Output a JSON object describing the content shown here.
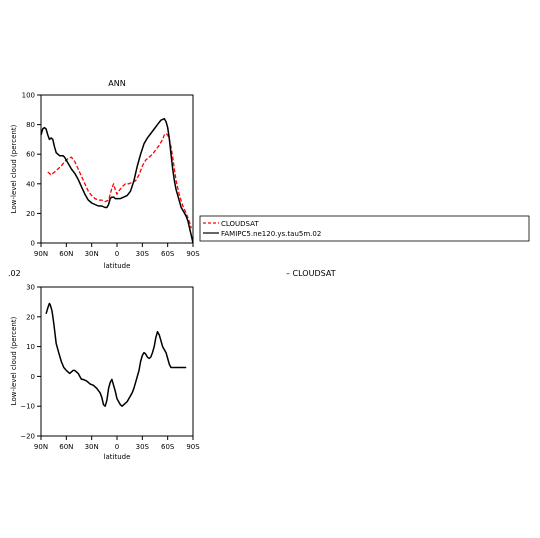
{
  "figure": {
    "left_fragment": ".02",
    "right_fragment": "–  CLOUDSAT"
  },
  "chart_data": [
    {
      "type": "line",
      "title": "ANN",
      "xlabel": "latitude",
      "ylabel": "Low-level cloud (percent)",
      "xlim": [
        -90,
        90
      ],
      "ylim": [
        0,
        100
      ],
      "xticks": [
        -90,
        -60,
        -30,
        0,
        30,
        60,
        90
      ],
      "xtick_labels": [
        "90N",
        "60N",
        "30N",
        "0",
        "30S",
        "60S",
        "90S"
      ],
      "yticks": [
        0,
        20,
        40,
        60,
        80,
        100
      ],
      "ytick_labels": [
        "0",
        "20",
        "40",
        "60",
        "80",
        "100"
      ],
      "grid": false,
      "legend": "right, outside plot",
      "series": [
        {
          "name": "CLOUDSAT",
          "color": "#ff0000",
          "style": "dashed",
          "x": [
            -82,
            -78,
            -74,
            -70,
            -66,
            -62,
            -58,
            -54,
            -50,
            -46,
            -42,
            -38,
            -34,
            -30,
            -26,
            -22,
            -18,
            -14,
            -10,
            -8,
            -6,
            -4,
            -2,
            0,
            2,
            6,
            10,
            14,
            18,
            22,
            26,
            30,
            34,
            38,
            42,
            46,
            50,
            54,
            56,
            58,
            60,
            62,
            64,
            66,
            68,
            70,
            74,
            78,
            82,
            84,
            86,
            88
          ],
          "y": [
            48,
            46,
            48,
            50,
            52,
            55,
            57,
            58,
            55,
            50,
            45,
            40,
            35,
            32,
            30,
            29,
            29,
            28,
            29,
            33,
            37,
            40,
            36,
            33,
            35,
            38,
            40,
            40,
            41,
            42,
            46,
            52,
            56,
            58,
            60,
            63,
            66,
            70,
            73,
            74,
            73,
            70,
            65,
            58,
            50,
            42,
            32,
            25,
            20,
            17,
            14,
            10
          ]
        },
        {
          "name": "FAMIPC5.ne120.ys.tau5m.02",
          "color": "#000000",
          "style": "solid",
          "x": [
            -90,
            -88,
            -86,
            -84,
            -82,
            -80,
            -78,
            -76,
            -74,
            -72,
            -70,
            -68,
            -66,
            -64,
            -62,
            -60,
            -58,
            -56,
            -54,
            -50,
            -46,
            -42,
            -38,
            -34,
            -30,
            -26,
            -22,
            -18,
            -14,
            -12,
            -10,
            -8,
            -6,
            -4,
            -2,
            0,
            2,
            4,
            8,
            12,
            16,
            20,
            24,
            28,
            32,
            36,
            40,
            44,
            48,
            52,
            56,
            58,
            60,
            62,
            64,
            66,
            68,
            70,
            72,
            74,
            76,
            78,
            80,
            82,
            84,
            86,
            88,
            90
          ],
          "y": [
            73,
            77,
            78,
            77,
            73,
            70,
            71,
            70,
            65,
            61,
            60,
            59,
            59,
            59,
            58,
            56,
            54,
            52,
            50,
            47,
            43,
            38,
            33,
            29,
            27,
            26,
            25,
            25,
            24,
            24,
            26,
            30,
            31,
            31,
            30,
            30,
            30,
            30,
            31,
            32,
            35,
            42,
            52,
            60,
            67,
            71,
            74,
            77,
            80,
            83,
            84,
            82,
            78,
            70,
            60,
            50,
            42,
            36,
            32,
            28,
            24,
            22,
            20,
            18,
            15,
            10,
            5,
            0
          ]
        }
      ]
    },
    {
      "type": "line",
      "title": "",
      "xlabel": "latitude",
      "ylabel": "Low-level cloud (percent)",
      "xlim": [
        -90,
        90
      ],
      "ylim": [
        -20,
        30
      ],
      "xticks": [
        -90,
        -60,
        -30,
        0,
        30,
        60,
        90
      ],
      "xtick_labels": [
        "90N",
        "60N",
        "30N",
        "0",
        "30S",
        "60S",
        "90S"
      ],
      "yticks": [
        -20,
        -10,
        0,
        10,
        20,
        30
      ],
      "ytick_labels": [
        "−20",
        "−10",
        "0",
        "10",
        "20",
        "30"
      ],
      "grid": false,
      "series": [
        {
          "color": "#000000",
          "style": "solid",
          "x": [
            -84,
            -82,
            -80,
            -79,
            -77,
            -75,
            -72,
            -69,
            -66,
            -63,
            -60,
            -58,
            -56,
            -54,
            -52,
            -50,
            -48,
            -46,
            -44,
            -42,
            -40,
            -36,
            -32,
            -28,
            -24,
            -20,
            -18,
            -16,
            -14,
            -12,
            -10,
            -8,
            -6,
            -4,
            -2,
            0,
            2,
            4,
            6,
            8,
            10,
            12,
            14,
            16,
            18,
            20,
            22,
            24,
            26,
            28,
            30,
            32,
            34,
            36,
            38,
            40,
            42,
            44,
            46,
            48,
            50,
            52,
            54,
            56,
            58,
            60,
            62,
            64,
            66,
            68,
            70,
            72,
            74,
            76,
            78,
            80,
            82
          ],
          "y": [
            21,
            23,
            24.5,
            24,
            22,
            18,
            11,
            8,
            5,
            3,
            2,
            1.5,
            1,
            1.5,
            2,
            2,
            1.5,
            1,
            0,
            -1,
            -1,
            -1.5,
            -2.5,
            -3,
            -4,
            -5.5,
            -7,
            -9.5,
            -10,
            -8,
            -4,
            -2,
            -1,
            -3,
            -5,
            -7.5,
            -8.5,
            -9.5,
            -10,
            -9.5,
            -9,
            -8.5,
            -7.5,
            -6.5,
            -5.5,
            -4,
            -2,
            0,
            2,
            5,
            7,
            8,
            7.5,
            6.5,
            6,
            6.5,
            8,
            10,
            13,
            15,
            14,
            12,
            10,
            9,
            8,
            6,
            4,
            3,
            3,
            3,
            3,
            3,
            3,
            3,
            3,
            3,
            3
          ]
        }
      ]
    }
  ]
}
